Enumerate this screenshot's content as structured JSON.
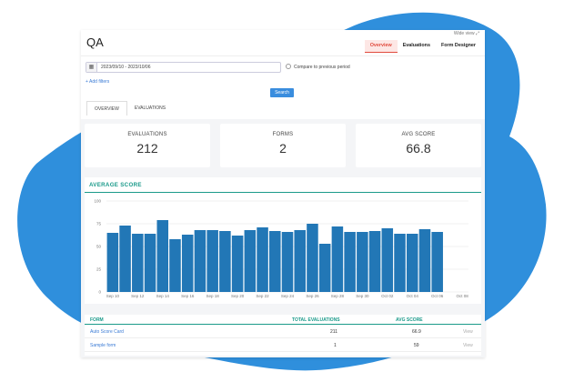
{
  "header": {
    "title": "QA",
    "wide_view": "Wide view ⤢"
  },
  "tabs": [
    {
      "label": "Overview",
      "active": true
    },
    {
      "label": "Evaluations",
      "active": false
    },
    {
      "label": "Form Designer",
      "active": false
    }
  ],
  "filters": {
    "date_range": "2023/09/10 - 2023/10/06",
    "compare_label": "Compare to previous period",
    "add_filters": "+ Add filters",
    "search_label": "Search"
  },
  "subtabs": [
    {
      "label": "OVERVIEW",
      "active": true
    },
    {
      "label": "EVALUATIONS",
      "active": false
    }
  ],
  "cards": [
    {
      "label": "EVALUATIONS",
      "value": "212"
    },
    {
      "label": "FORMS",
      "value": "2"
    },
    {
      "label": "AVG SCORE",
      "value": "66.8"
    }
  ],
  "colors": {
    "brand_blob": "#2f8fdc",
    "bar": "#2277b6",
    "accent_teal": "#1a9a8a",
    "tab_active": "#e14b3e"
  },
  "avg_section": {
    "title": "AVERAGE SCORE"
  },
  "chart_data": {
    "type": "bar",
    "title": "AVERAGE SCORE",
    "ylim": [
      0,
      100
    ],
    "yticks": [
      0,
      25,
      50,
      75,
      100
    ],
    "xtick_labels": [
      "Sep 10",
      "Sep 12",
      "Sep 14",
      "Sep 16",
      "Sep 18",
      "Sep 20",
      "Sep 22",
      "Sep 24",
      "Sep 26",
      "Sep 28",
      "Sep 30",
      "Oct 02",
      "Oct 04",
      "Oct 06",
      "Oct 08"
    ],
    "categories": [
      "Sep 10",
      "Sep 11",
      "Sep 12",
      "Sep 13",
      "Sep 14",
      "Sep 15",
      "Sep 16",
      "Sep 17",
      "Sep 18",
      "Sep 19",
      "Sep 20",
      "Sep 21",
      "Sep 22",
      "Sep 23",
      "Sep 24",
      "Sep 25",
      "Sep 26",
      "Sep 27",
      "Sep 28",
      "Sep 29",
      "Sep 30",
      "Oct 01",
      "Oct 02",
      "Oct 03",
      "Oct 04",
      "Oct 05",
      "Oct 06",
      "Oct 07",
      "Oct 08"
    ],
    "values": [
      65,
      73,
      64,
      64,
      79,
      58,
      63,
      68,
      68,
      67,
      62,
      68,
      71,
      67,
      66,
      68,
      75,
      53,
      72,
      66,
      66,
      67,
      70,
      64,
      64,
      69,
      66,
      null,
      null
    ],
    "grid": true
  },
  "table": {
    "headers": [
      "FORM",
      "TOTAL EVALUATIONS",
      "AVG SCORE",
      ""
    ],
    "rows": [
      {
        "form": "Auto Score Card",
        "total": "211",
        "avg": "66.9",
        "action": "View"
      },
      {
        "form": "Sample form",
        "total": "1",
        "avg": "59",
        "action": "View"
      }
    ]
  }
}
